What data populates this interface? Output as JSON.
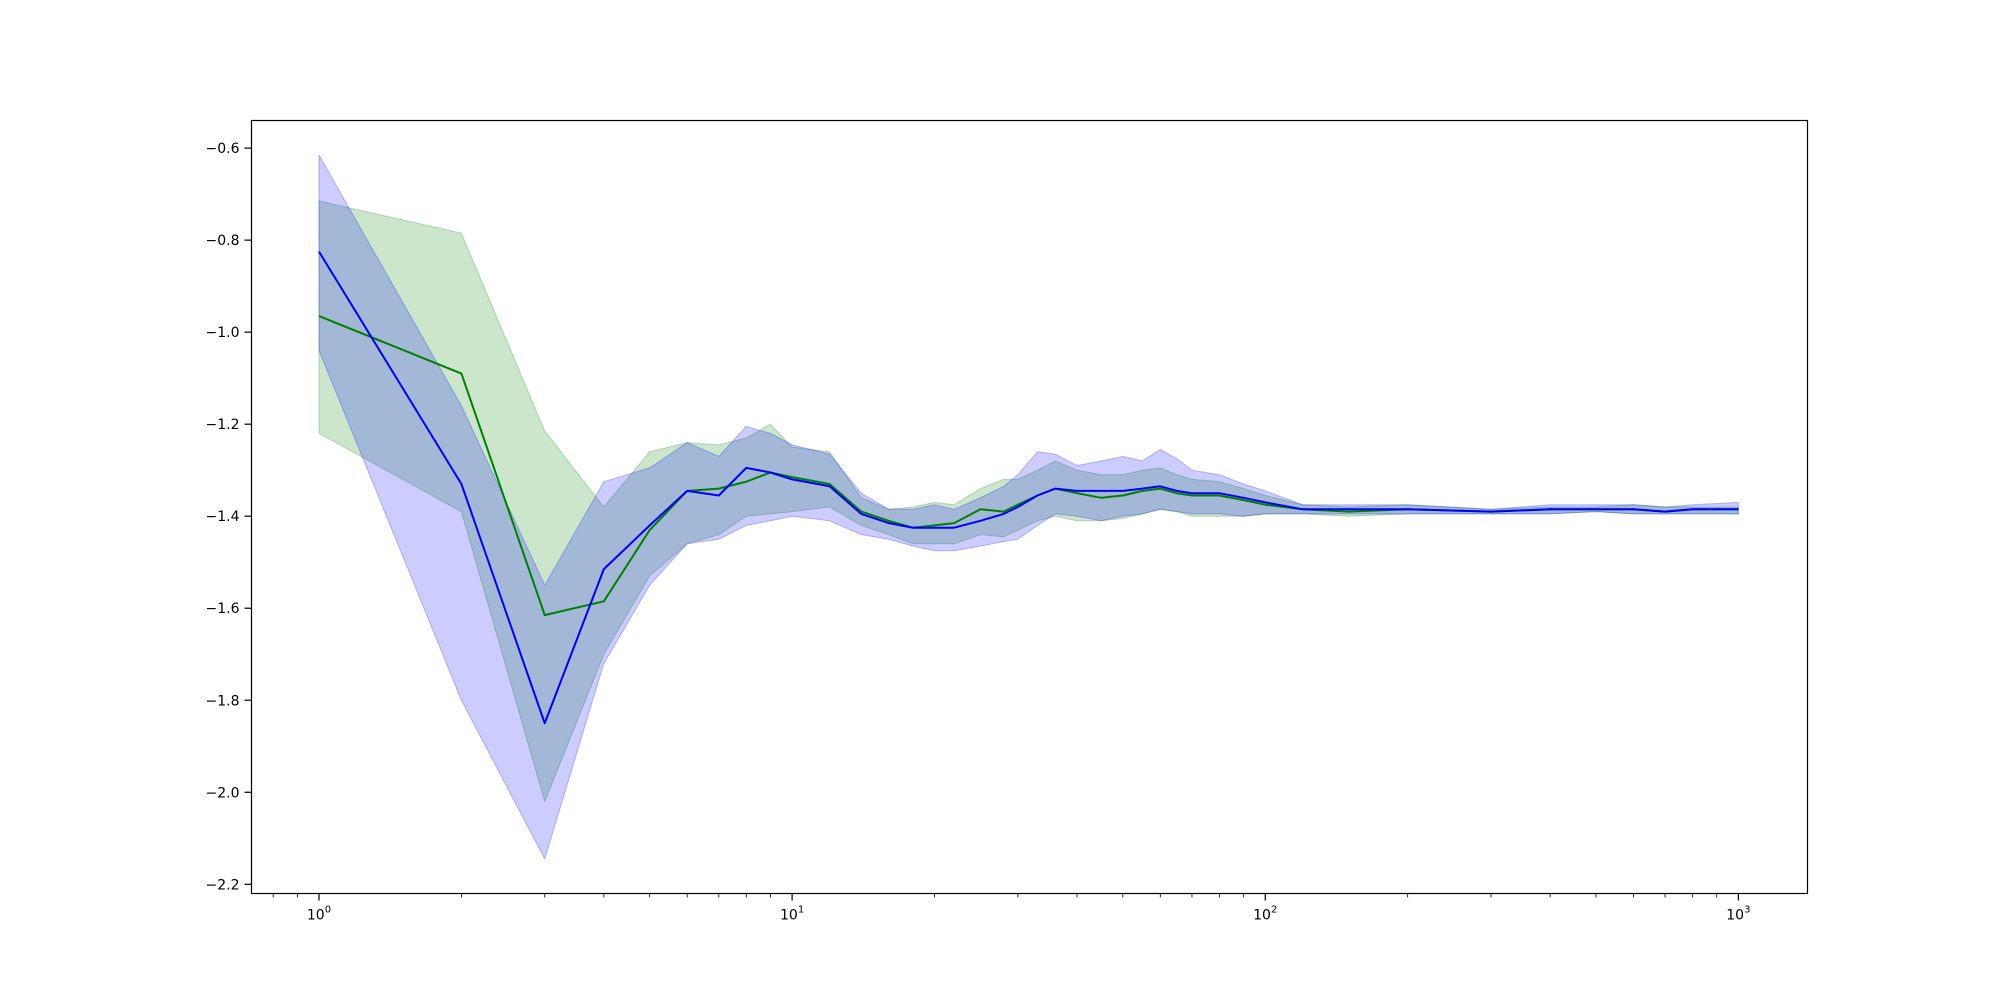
{
  "chart_data": {
    "type": "line",
    "xscale": "log",
    "xlim": [
      0.72,
      1400
    ],
    "ylim": [
      -2.22,
      -0.54
    ],
    "grid": false,
    "legend": "none",
    "x_tick_labels": [
      {
        "value": 1,
        "base": "10",
        "exp": "0"
      },
      {
        "value": 10,
        "base": "10",
        "exp": "1"
      },
      {
        "value": 100,
        "base": "10",
        "exp": "2"
      },
      {
        "value": 1000,
        "base": "10",
        "exp": "3"
      }
    ],
    "y_tick_labels": [
      {
        "value": -0.6,
        "label": "−0.6"
      },
      {
        "value": -0.8,
        "label": "−0.8"
      },
      {
        "value": -1.0,
        "label": "−1.0"
      },
      {
        "value": -1.2,
        "label": "−1.2"
      },
      {
        "value": -1.4,
        "label": "−1.4"
      },
      {
        "value": -1.6,
        "label": "−1.6"
      },
      {
        "value": -1.8,
        "label": "−1.8"
      },
      {
        "value": -2.0,
        "label": "−2.0"
      },
      {
        "value": -2.2,
        "label": "−2.2"
      }
    ],
    "series": [
      {
        "color": "#008000",
        "band_color": "#008000",
        "band_opacity": 0.2,
        "x": [
          1,
          2,
          3,
          4,
          5,
          6,
          7,
          8,
          9,
          10,
          12,
          14,
          16,
          18,
          20,
          22,
          25,
          28,
          30,
          33,
          36,
          40,
          45,
          50,
          55,
          60,
          65,
          70,
          80,
          90,
          100,
          120,
          150,
          200,
          300,
          400,
          500,
          600,
          700,
          800,
          1000
        ],
        "y": [
          -0.965,
          -1.09,
          -1.615,
          -1.585,
          -1.43,
          -1.345,
          -1.34,
          -1.325,
          -1.305,
          -1.315,
          -1.33,
          -1.39,
          -1.41,
          -1.425,
          -1.42,
          -1.415,
          -1.385,
          -1.39,
          -1.375,
          -1.355,
          -1.34,
          -1.35,
          -1.36,
          -1.355,
          -1.345,
          -1.34,
          -1.35,
          -1.355,
          -1.355,
          -1.365,
          -1.375,
          -1.385,
          -1.39,
          -1.385,
          -1.39,
          -1.385,
          -1.385,
          -1.385,
          -1.39,
          -1.385,
          -1.385
        ],
        "lower": [
          -1.22,
          -1.39,
          -2.02,
          -1.7,
          -1.53,
          -1.46,
          -1.44,
          -1.4,
          -1.395,
          -1.39,
          -1.38,
          -1.42,
          -1.44,
          -1.46,
          -1.46,
          -1.46,
          -1.44,
          -1.445,
          -1.43,
          -1.41,
          -1.4,
          -1.41,
          -1.41,
          -1.405,
          -1.395,
          -1.385,
          -1.39,
          -1.4,
          -1.4,
          -1.4,
          -1.395,
          -1.395,
          -1.4,
          -1.395,
          -1.395,
          -1.395,
          -1.39,
          -1.395,
          -1.395,
          -1.395,
          -1.395
        ],
        "upper": [
          -0.715,
          -0.785,
          -1.215,
          -1.38,
          -1.26,
          -1.24,
          -1.245,
          -1.23,
          -1.2,
          -1.25,
          -1.26,
          -1.36,
          -1.385,
          -1.38,
          -1.37,
          -1.375,
          -1.34,
          -1.32,
          -1.32,
          -1.3,
          -1.28,
          -1.3,
          -1.31,
          -1.31,
          -1.3,
          -1.295,
          -1.31,
          -1.32,
          -1.325,
          -1.34,
          -1.355,
          -1.375,
          -1.38,
          -1.375,
          -1.385,
          -1.38,
          -1.38,
          -1.375,
          -1.38,
          -1.38,
          -1.38
        ]
      },
      {
        "color": "#0000ff",
        "band_color": "#0000ff",
        "band_opacity": 0.2,
        "x": [
          1,
          2,
          3,
          4,
          5,
          6,
          7,
          8,
          9,
          10,
          12,
          14,
          16,
          18,
          20,
          22,
          25,
          28,
          30,
          33,
          36,
          40,
          45,
          50,
          55,
          60,
          65,
          70,
          80,
          90,
          100,
          120,
          150,
          200,
          300,
          400,
          500,
          600,
          700,
          800,
          1000
        ],
        "y": [
          -0.825,
          -1.33,
          -1.85,
          -1.515,
          -1.42,
          -1.345,
          -1.355,
          -1.295,
          -1.305,
          -1.32,
          -1.335,
          -1.395,
          -1.415,
          -1.425,
          -1.425,
          -1.425,
          -1.41,
          -1.395,
          -1.38,
          -1.355,
          -1.34,
          -1.345,
          -1.345,
          -1.345,
          -1.34,
          -1.335,
          -1.345,
          -1.35,
          -1.35,
          -1.36,
          -1.37,
          -1.385,
          -1.385,
          -1.385,
          -1.39,
          -1.385,
          -1.385,
          -1.385,
          -1.39,
          -1.385,
          -1.385
        ],
        "lower": [
          -1.04,
          -1.8,
          -2.145,
          -1.72,
          -1.55,
          -1.46,
          -1.45,
          -1.42,
          -1.41,
          -1.4,
          -1.41,
          -1.44,
          -1.45,
          -1.465,
          -1.475,
          -1.475,
          -1.465,
          -1.455,
          -1.45,
          -1.42,
          -1.395,
          -1.4,
          -1.41,
          -1.4,
          -1.395,
          -1.385,
          -1.39,
          -1.395,
          -1.395,
          -1.4,
          -1.395,
          -1.395,
          -1.395,
          -1.395,
          -1.395,
          -1.395,
          -1.39,
          -1.395,
          -1.395,
          -1.395,
          -1.395
        ],
        "upper": [
          -0.615,
          -1.16,
          -1.55,
          -1.325,
          -1.295,
          -1.24,
          -1.27,
          -1.205,
          -1.22,
          -1.245,
          -1.265,
          -1.35,
          -1.385,
          -1.385,
          -1.375,
          -1.385,
          -1.36,
          -1.335,
          -1.31,
          -1.26,
          -1.265,
          -1.29,
          -1.28,
          -1.27,
          -1.28,
          -1.255,
          -1.275,
          -1.3,
          -1.31,
          -1.33,
          -1.345,
          -1.375,
          -1.375,
          -1.375,
          -1.385,
          -1.375,
          -1.375,
          -1.375,
          -1.38,
          -1.375,
          -1.37
        ]
      }
    ]
  }
}
